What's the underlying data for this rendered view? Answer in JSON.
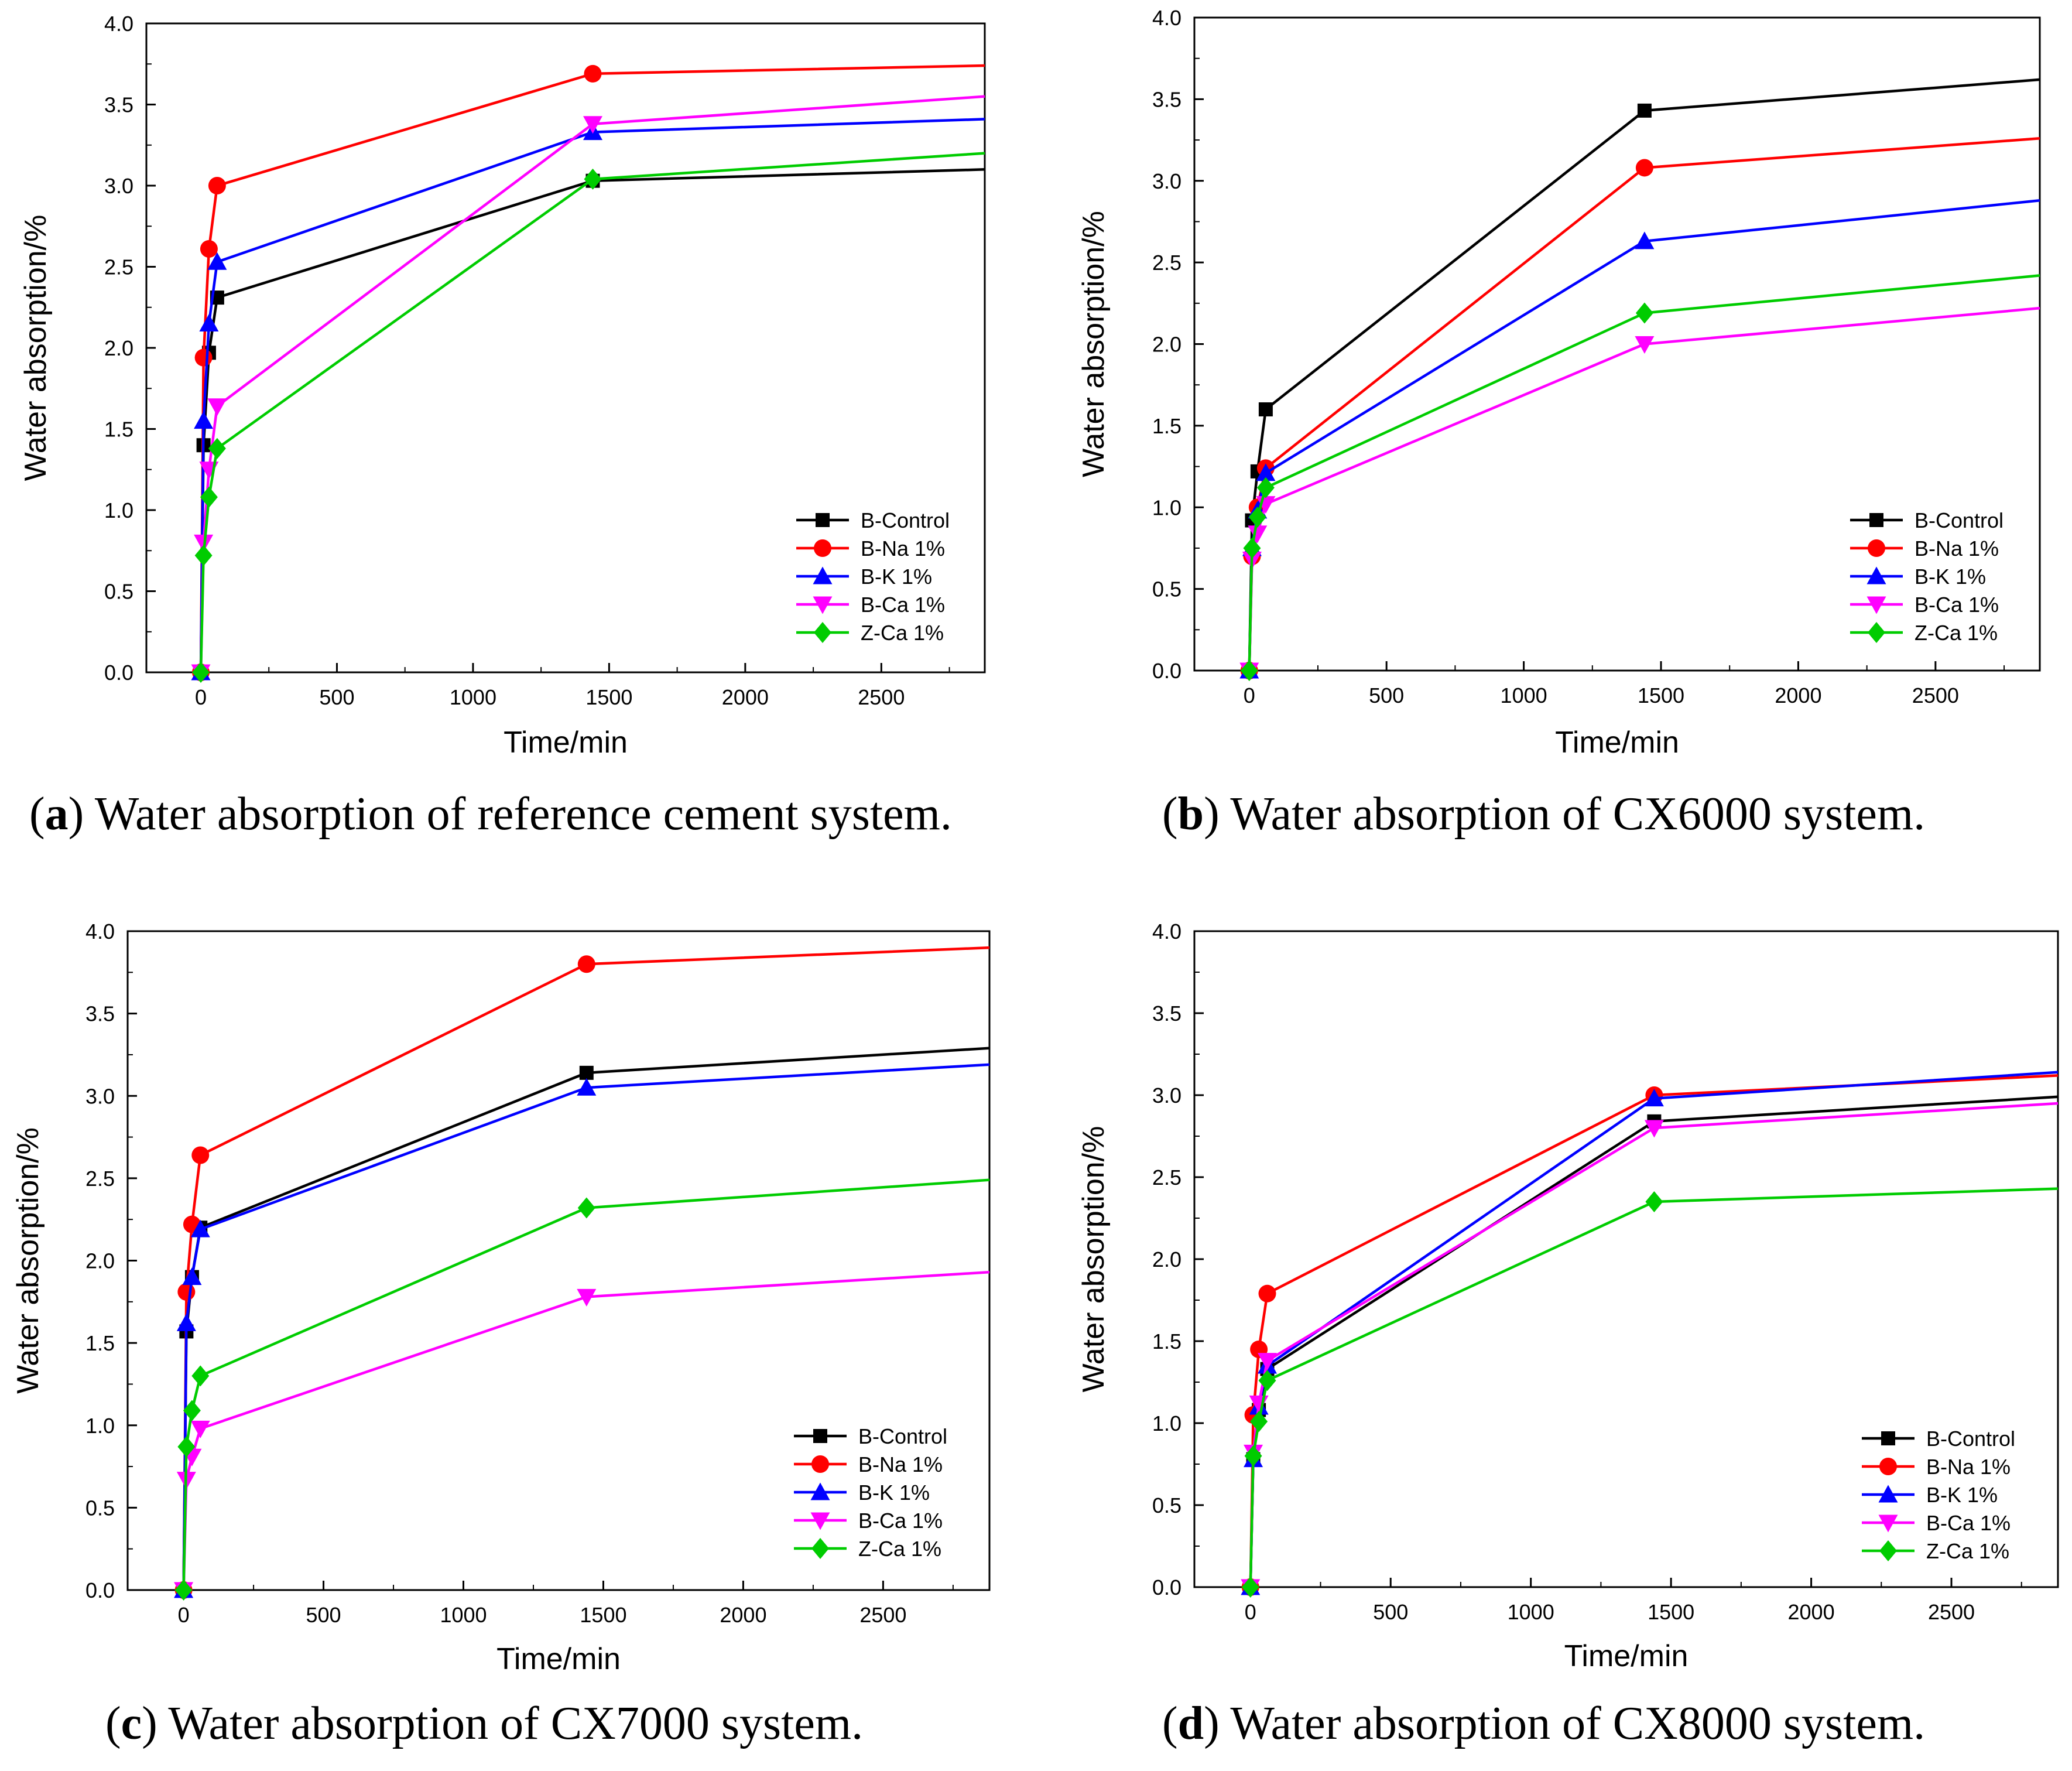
{
  "figure": {
    "panels": [
      {
        "label": "a",
        "caption": "Water absorption of reference cement system."
      },
      {
        "label": "b",
        "caption": "Water absorption of CX6000 system."
      },
      {
        "label": "c",
        "caption": "Water absorption of CX7000 system."
      },
      {
        "label": "d",
        "caption": "Water absorption of CX8000 system."
      }
    ]
  },
  "chart_data": [
    {
      "type": "line",
      "title": "",
      "xlabel": "Time/min",
      "ylabel": "Water absorption/%",
      "xlim": [
        -200,
        2880
      ],
      "ylim": [
        0,
        4.0
      ],
      "xticks": [
        0,
        500,
        1000,
        1500,
        2000,
        2500
      ],
      "yticks": [
        0.0,
        0.5,
        1.0,
        1.5,
        2.0,
        2.5,
        3.0,
        3.5,
        4.0
      ],
      "legend_position": "bottom-right",
      "series": [
        {
          "name": "B-Control",
          "color": "#000000",
          "marker": "square",
          "x": [
            0,
            10,
            30,
            60,
            1440,
            2880
          ],
          "y": [
            0,
            1.4,
            1.97,
            2.31,
            3.03,
            3.1
          ]
        },
        {
          "name": "B-Na 1%",
          "color": "#ff0000",
          "marker": "circle",
          "x": [
            0,
            10,
            30,
            60,
            1440,
            2880
          ],
          "y": [
            0,
            1.94,
            2.61,
            3.0,
            3.69,
            3.74
          ]
        },
        {
          "name": "B-K 1%",
          "color": "#0000ff",
          "marker": "triangle-up",
          "x": [
            0,
            10,
            30,
            60,
            1440,
            2880
          ],
          "y": [
            0,
            1.55,
            2.15,
            2.53,
            3.33,
            3.41
          ]
        },
        {
          "name": "B-Ca 1%",
          "color": "#ff00ff",
          "marker": "triangle-down",
          "x": [
            0,
            10,
            30,
            60,
            1440,
            2880
          ],
          "y": [
            0,
            0.8,
            1.25,
            1.64,
            3.38,
            3.55
          ]
        },
        {
          "name": "Z-Ca 1%",
          "color": "#00cc00",
          "marker": "diamond",
          "x": [
            0,
            10,
            30,
            60,
            1440,
            2880
          ],
          "y": [
            0,
            0.72,
            1.08,
            1.38,
            3.04,
            3.2
          ]
        }
      ]
    },
    {
      "type": "line",
      "title": "",
      "xlabel": "Time/min",
      "ylabel": "Water absorption/%",
      "xlim": [
        -200,
        2880
      ],
      "ylim": [
        0,
        4.0
      ],
      "xticks": [
        0,
        500,
        1000,
        1500,
        2000,
        2500
      ],
      "yticks": [
        0.0,
        0.5,
        1.0,
        1.5,
        2.0,
        2.5,
        3.0,
        3.5,
        4.0
      ],
      "legend_position": "bottom-right",
      "series": [
        {
          "name": "B-Control",
          "color": "#000000",
          "marker": "square",
          "x": [
            0,
            10,
            30,
            60,
            1440,
            2880
          ],
          "y": [
            0,
            0.92,
            1.22,
            1.6,
            3.43,
            3.62
          ]
        },
        {
          "name": "B-Na 1%",
          "color": "#ff0000",
          "marker": "circle",
          "x": [
            0,
            10,
            30,
            60,
            1440,
            2880
          ],
          "y": [
            0,
            0.7,
            1.0,
            1.24,
            3.08,
            3.26
          ]
        },
        {
          "name": "B-K 1%",
          "color": "#0000ff",
          "marker": "triangle-up",
          "x": [
            0,
            10,
            30,
            60,
            1440,
            2880
          ],
          "y": [
            0,
            0.75,
            0.98,
            1.21,
            2.63,
            2.88
          ]
        },
        {
          "name": "B-Ca 1%",
          "color": "#ff00ff",
          "marker": "triangle-down",
          "x": [
            0,
            10,
            30,
            60,
            1440,
            2880
          ],
          "y": [
            0,
            0.68,
            0.84,
            1.02,
            2.0,
            2.22
          ]
        },
        {
          "name": "Z-Ca 1%",
          "color": "#00cc00",
          "marker": "diamond",
          "x": [
            0,
            10,
            30,
            60,
            1440,
            2880
          ],
          "y": [
            0,
            0.75,
            0.94,
            1.12,
            2.19,
            2.42
          ]
        }
      ]
    },
    {
      "type": "line",
      "title": "",
      "xlabel": "Time/min",
      "ylabel": "Water absorption/%",
      "xlim": [
        -200,
        2880
      ],
      "ylim": [
        0,
        4.0
      ],
      "xticks": [
        0,
        500,
        1000,
        1500,
        2000,
        2500
      ],
      "yticks": [
        0.0,
        0.5,
        1.0,
        1.5,
        2.0,
        2.5,
        3.0,
        3.5,
        4.0
      ],
      "legend_position": "bottom-right",
      "series": [
        {
          "name": "B-Control",
          "color": "#000000",
          "marker": "square",
          "x": [
            0,
            10,
            30,
            60,
            1440,
            2880
          ],
          "y": [
            0,
            1.57,
            1.9,
            2.2,
            3.14,
            3.29
          ]
        },
        {
          "name": "B-Na 1%",
          "color": "#ff0000",
          "marker": "circle",
          "x": [
            0,
            10,
            30,
            60,
            1440,
            2880
          ],
          "y": [
            0,
            1.81,
            2.22,
            2.64,
            3.8,
            3.9
          ]
        },
        {
          "name": "B-K 1%",
          "color": "#0000ff",
          "marker": "triangle-up",
          "x": [
            0,
            10,
            30,
            60,
            1440,
            2880
          ],
          "y": [
            0,
            1.62,
            1.9,
            2.19,
            3.05,
            3.19
          ]
        },
        {
          "name": "B-Ca 1%",
          "color": "#ff00ff",
          "marker": "triangle-down",
          "x": [
            0,
            10,
            30,
            60,
            1440,
            2880
          ],
          "y": [
            0,
            0.67,
            0.81,
            0.98,
            1.78,
            1.93
          ]
        },
        {
          "name": "Z-Ca 1%",
          "color": "#00cc00",
          "marker": "diamond",
          "x": [
            0,
            10,
            30,
            60,
            1440,
            2880
          ],
          "y": [
            0,
            0.87,
            1.09,
            1.3,
            2.32,
            2.49
          ]
        }
      ]
    },
    {
      "type": "line",
      "title": "",
      "xlabel": "Time/min",
      "ylabel": "Water absorption/%",
      "xlim": [
        -200,
        2880
      ],
      "ylim": [
        0,
        4.0
      ],
      "xticks": [
        0,
        500,
        1000,
        1500,
        2000,
        2500
      ],
      "yticks": [
        0.0,
        0.5,
        1.0,
        1.5,
        2.0,
        2.5,
        3.0,
        3.5,
        4.0
      ],
      "legend_position": "bottom-right",
      "series": [
        {
          "name": "B-Control",
          "color": "#000000",
          "marker": "square",
          "x": [
            0,
            10,
            30,
            60,
            1440,
            2880
          ],
          "y": [
            0,
            0.78,
            1.08,
            1.33,
            2.84,
            2.99
          ]
        },
        {
          "name": "B-Na 1%",
          "color": "#ff0000",
          "marker": "circle",
          "x": [
            0,
            10,
            30,
            60,
            1440,
            2880
          ],
          "y": [
            0,
            1.05,
            1.45,
            1.79,
            3.0,
            3.12
          ]
        },
        {
          "name": "B-K 1%",
          "color": "#0000ff",
          "marker": "triangle-up",
          "x": [
            0,
            10,
            30,
            60,
            1440,
            2880
          ],
          "y": [
            0,
            0.78,
            1.1,
            1.35,
            2.98,
            3.14
          ]
        },
        {
          "name": "B-Ca 1%",
          "color": "#ff00ff",
          "marker": "triangle-down",
          "x": [
            0,
            10,
            30,
            60,
            1440,
            2880
          ],
          "y": [
            0,
            0.82,
            1.12,
            1.38,
            2.8,
            2.95
          ]
        },
        {
          "name": "Z-Ca 1%",
          "color": "#00cc00",
          "marker": "diamond",
          "x": [
            0,
            10,
            30,
            60,
            1440,
            2880
          ],
          "y": [
            0,
            0.8,
            1.01,
            1.26,
            2.35,
            2.43
          ]
        }
      ]
    }
  ]
}
